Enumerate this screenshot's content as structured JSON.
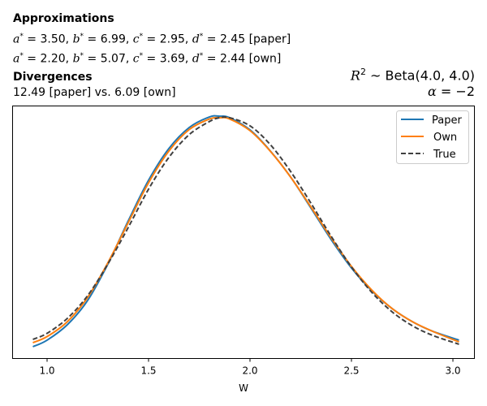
{
  "header": {
    "approx_title": "Approximations",
    "approx_lines": [
      {
        "a": "3.50",
        "b": "6.99",
        "c": "2.95",
        "d": "2.45",
        "tag": "[paper]"
      },
      {
        "a": "2.20",
        "b": "5.07",
        "c": "3.69",
        "d": "2.44",
        "tag": "[own]"
      }
    ],
    "div_title": "Divergences",
    "div_text": "12.49 [paper] vs. 6.09 [own]",
    "dist_prefix": "R",
    "dist_sup": "2",
    "dist_text": " ~  Beta(4.0, 4.0)",
    "alpha_label": "α",
    "alpha_text": " = −2"
  },
  "chart_data": {
    "type": "line",
    "title": "",
    "xlabel": "W",
    "ylabel": "",
    "xlim": [
      0.83,
      3.13
    ],
    "ylim": [
      0,
      1
    ],
    "grid": false,
    "xticks": [
      1.0,
      1.5,
      2.0,
      2.5,
      3.0
    ],
    "xtick_labels": [
      "1.0",
      "1.5",
      "2.0",
      "2.5",
      "3.0"
    ],
    "yticks": [],
    "legend_position": "top-right",
    "x": [
      0.93,
      1.0,
      1.1,
      1.2,
      1.3,
      1.4,
      1.5,
      1.6,
      1.7,
      1.8,
      1.85,
      1.9,
      2.0,
      2.1,
      2.2,
      2.3,
      2.4,
      2.5,
      2.6,
      2.7,
      2.8,
      2.9,
      3.03
    ],
    "series": [
      {
        "name": "Paper",
        "color": "#1f77b4",
        "style": "solid",
        "values": [
          0.048,
          0.074,
          0.135,
          0.231,
          0.375,
          0.545,
          0.705,
          0.83,
          0.913,
          0.955,
          0.958,
          0.952,
          0.904,
          0.821,
          0.718,
          0.596,
          0.471,
          0.359,
          0.269,
          0.199,
          0.147,
          0.109,
          0.074
        ]
      },
      {
        "name": "Own",
        "color": "#ff7f0e",
        "style": "solid",
        "values": [
          0.064,
          0.088,
          0.147,
          0.243,
          0.38,
          0.538,
          0.695,
          0.82,
          0.905,
          0.947,
          0.952,
          0.947,
          0.901,
          0.82,
          0.718,
          0.6,
          0.478,
          0.365,
          0.272,
          0.199,
          0.147,
          0.109,
          0.067
        ]
      },
      {
        "name": "True",
        "color": "#404040",
        "style": "dashed",
        "values": [
          0.077,
          0.101,
          0.16,
          0.25,
          0.375,
          0.519,
          0.67,
          0.795,
          0.885,
          0.937,
          0.952,
          0.952,
          0.92,
          0.846,
          0.74,
          0.615,
          0.484,
          0.363,
          0.263,
          0.186,
          0.131,
          0.093,
          0.058
        ]
      }
    ]
  }
}
